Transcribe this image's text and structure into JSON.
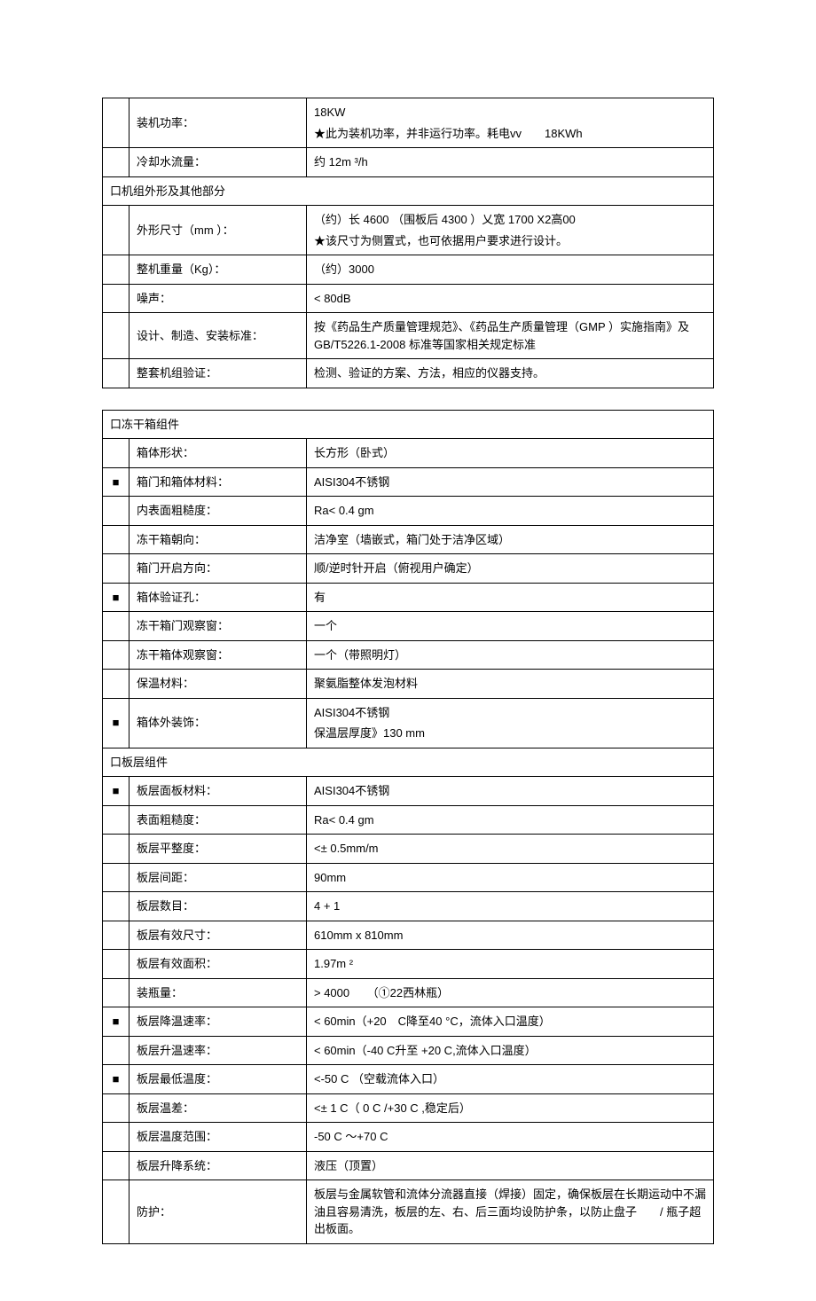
{
  "table1": {
    "rows": [
      {
        "mark": "",
        "label": "装机功率：",
        "value": "18KW",
        "value2": "★此为装机功率，并非运行功率。耗电vv　　18KWh"
      },
      {
        "mark": "",
        "label": "冷却水流量：",
        "value": "约 12m ³/h"
      }
    ],
    "section1": {
      "header": "口机组外形及其他部分"
    },
    "rows2": [
      {
        "mark": "",
        "label": "外形尺寸（mm ）：",
        "value": "（约）长 4600 （围板后 4300 ）乂宽 1700 X2高00",
        "value2": "★该尺寸为侧置式，也可依据用户要求进行设计。"
      },
      {
        "mark": "",
        "label": "整机重量（Kg）：",
        "value": "（约）3000"
      },
      {
        "mark": "",
        "label": "噪声：",
        "value": "< 80dB"
      },
      {
        "mark": "",
        "label": "设计、制造、安装标准：",
        "value": "按《药品生产质量管理规范》、《药品生产质量管理（GMP ）实施指南》及GB/T5226.1-2008 标准等国家相关规定标准"
      },
      {
        "mark": "",
        "label": "整套机组验证：",
        "value": "检测、验证的方案、方法，相应的仪器支持。"
      }
    ]
  },
  "table2": {
    "section1": {
      "header": "口冻干箱组件"
    },
    "rows1": [
      {
        "mark": "",
        "label": "箱体形状：",
        "value": "长方形（卧式）"
      },
      {
        "mark": "■",
        "label": "箱门和箱体材料：",
        "value": "AISI304不锈钢"
      },
      {
        "mark": "",
        "label": "内表面粗糙度：",
        "value": "Ra< 0.4 gm"
      },
      {
        "mark": "",
        "label": "冻干箱朝向：",
        "value": "洁净室（墙嵌式，箱门处于洁净区域）"
      },
      {
        "mark": "",
        "label": "箱门开启方向：",
        "value": "顺/逆时针开启（俯视用户确定）"
      },
      {
        "mark": "■",
        "label": "箱体验证孔：",
        "value": "有"
      },
      {
        "mark": "",
        "label": "冻干箱门观察窗：",
        "value": "一个"
      },
      {
        "mark": "",
        "label": "冻干箱体观察窗：",
        "value": "一个（带照明灯）"
      },
      {
        "mark": "",
        "label": "保温材料：",
        "value": "聚氨脂整体发泡材料"
      },
      {
        "mark": "■",
        "label": "箱体外装饰：",
        "value": "AISI304不锈钢",
        "value2": "保温层厚度》130 mm"
      }
    ],
    "section2": {
      "header": "口板层组件"
    },
    "rows2": [
      {
        "mark": "■",
        "label": "板层面板材料：",
        "value": "AISI304不锈钢"
      },
      {
        "mark": "",
        "label": "表面粗糙度：",
        "value": "Ra< 0.4 gm"
      },
      {
        "mark": "",
        "label": "板层平整度：",
        "value": "<± 0.5mm/m"
      },
      {
        "mark": "",
        "label": "板层间距：",
        "value": "90mm"
      },
      {
        "mark": "",
        "label": "板层数目：",
        "value": "4 + 1"
      },
      {
        "mark": "",
        "label": "板层有效尺寸：",
        "value": "610mm x 810mm"
      },
      {
        "mark": "",
        "label": "板层有效面积：",
        "value": "1.97m ²"
      },
      {
        "mark": "",
        "label": "装瓶量：",
        "value": "> 4000　　（①22西林瓶）"
      },
      {
        "mark": "■",
        "label": "板层降温速率：",
        "value": "< 60min（+20　C降至40 °C，流体入口温度）"
      },
      {
        "mark": "",
        "label": "板层升温速率：",
        "value": "< 60min（-40 C升至 +20 C,流体入口温度）"
      },
      {
        "mark": "■",
        "label": "板层最低温度：",
        "value": "<-50 C （空载流体入口）"
      },
      {
        "mark": "",
        "label": "板层温差：",
        "value": "<± 1 C（ 0 C /+30 C ,稳定后）"
      },
      {
        "mark": "",
        "label": "板层温度范围：",
        "value": "-50 C ～+70 C"
      },
      {
        "mark": "",
        "label": "板层升降系统：",
        "value": "液压（顶置）"
      },
      {
        "mark": "",
        "label": "防护：",
        "value": " 板层与金属软管和流体分流器直接（焊接）固定，确保板层在长期运动中不漏油且容易清洗，板层的左、右、后三面均设防护条，以防止盘子　　/ 瓶子超出板面。"
      }
    ]
  }
}
